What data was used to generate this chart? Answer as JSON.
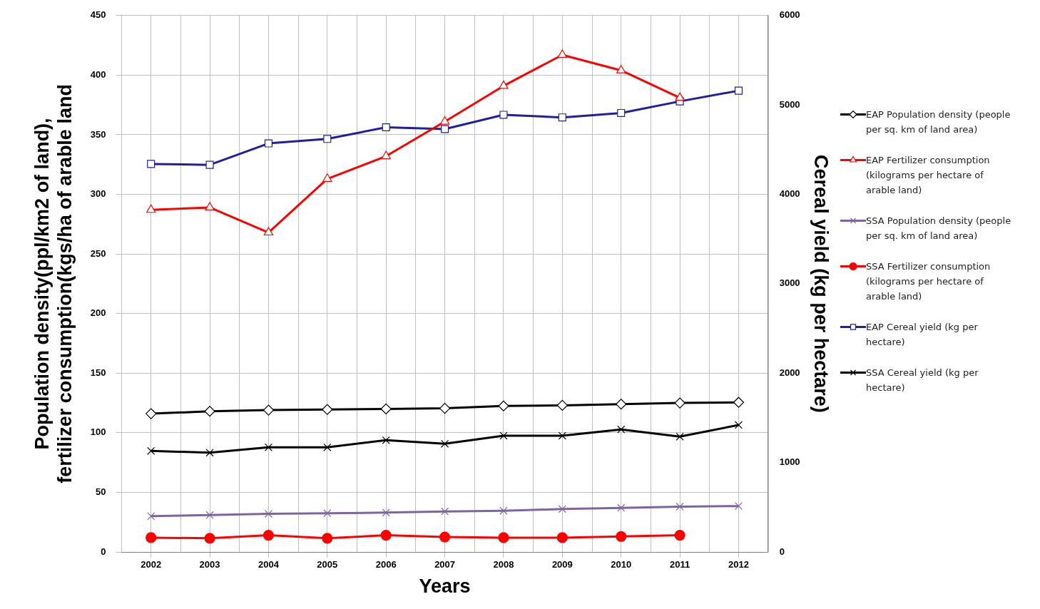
{
  "chart_data": {
    "type": "line",
    "xlabel": "Years",
    "ylabel": "Population density(ppl/km2 of land),\nfertilizer consumption(kgs/ha of arable land",
    "y2label": "Cereal yield (kg per hectare)",
    "categories": [
      "2002",
      "2003",
      "2004",
      "2005",
      "2006",
      "2007",
      "2008",
      "2009",
      "2010",
      "2011",
      "2012"
    ],
    "ylim": [
      0,
      450
    ],
    "yticks": [
      0,
      50,
      100,
      150,
      200,
      250,
      300,
      350,
      400,
      450
    ],
    "y2lim": [
      0,
      6000
    ],
    "y2ticks": [
      0,
      1000,
      2000,
      3000,
      4000,
      5000,
      6000
    ],
    "grid": true,
    "legend": "right",
    "series": [
      {
        "name": "EAP Population density (people per sq. km of land area)",
        "color": "#000000",
        "marker": "diamond",
        "values": [
          116,
          118,
          119,
          119.5,
          120,
          120.5,
          122.5,
          123,
          124,
          125,
          125.5
        ]
      },
      {
        "name": "EAP Fertilizer consumption (kilograms per hectare of arable land)",
        "color": "#ff0000",
        "marker": "triangle",
        "values": [
          287,
          289,
          268,
          313,
          332,
          361,
          391,
          417,
          404,
          381,
          null
        ]
      },
      {
        "name": "SSA Population density (people per sq. km of land area)",
        "color": "#8064a2",
        "marker": "cross",
        "values": [
          30,
          31,
          32,
          32.5,
          33,
          34,
          34.5,
          36,
          37,
          38,
          38.5
        ]
      },
      {
        "name": "SSA Fertilizer consumption (kilograms per hectare of arable land)",
        "color": "#ff0000",
        "marker": "circle",
        "values": [
          12,
          11.5,
          14,
          11.5,
          14,
          12.5,
          12,
          12,
          13,
          14,
          null
        ]
      },
      {
        "name": "EAP Cereal yield (kg per hectare)",
        "color": "#1f1f9f",
        "marker": "square",
        "axis": "y2",
        "values": [
          4340,
          4330,
          4570,
          4620,
          4750,
          4730,
          4890,
          4860,
          4910,
          5040,
          5160
        ]
      },
      {
        "name": "SSA Cereal yield (kg per hectare)",
        "color": "#000000",
        "marker": "cross",
        "axis": "y2",
        "values": [
          1130,
          1110,
          1170,
          1170,
          1250,
          1210,
          1300,
          1300,
          1370,
          1290,
          1420
        ]
      }
    ]
  }
}
